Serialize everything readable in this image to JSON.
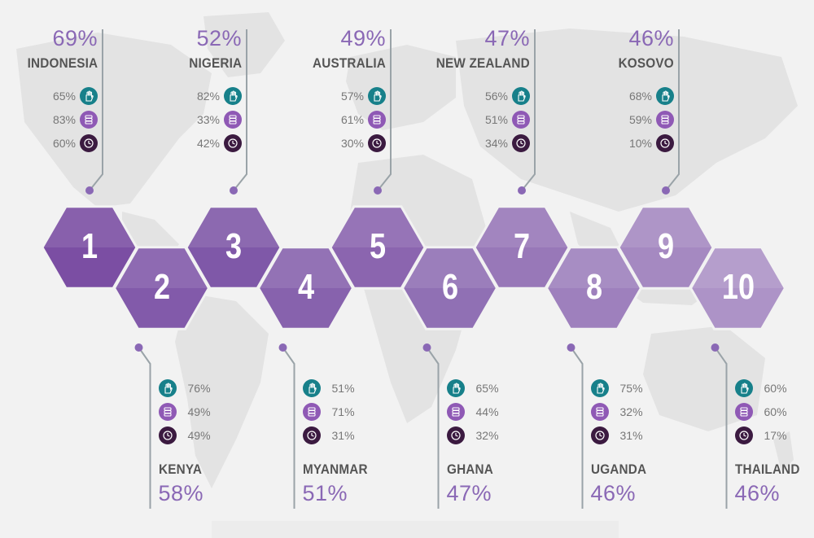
{
  "colors": {
    "hand": "#17808a",
    "coins": "#8f59b5",
    "clock": "#3b1a40",
    "accent": "#8a68b5",
    "line": "#9aa3a8",
    "map": "#e2e2e2"
  },
  "icons": {
    "hand": "hand-icon",
    "coins": "coins-icon",
    "clock": "clock-icon"
  },
  "items": [
    {
      "rank": "1",
      "country": "INDONESIA",
      "total": "69%",
      "stats": [
        "65%",
        "83%",
        "60%"
      ]
    },
    {
      "rank": "2",
      "country": "KENYA",
      "total": "58%",
      "stats": [
        "76%",
        "49%",
        "49%"
      ]
    },
    {
      "rank": "3",
      "country": "NIGERIA",
      "total": "52%",
      "stats": [
        "82%",
        "33%",
        "42%"
      ]
    },
    {
      "rank": "4",
      "country": "MYANMAR",
      "total": "51%",
      "stats": [
        "51%",
        "71%",
        "31%"
      ]
    },
    {
      "rank": "5",
      "country": "AUSTRALIA",
      "total": "49%",
      "stats": [
        "57%",
        "61%",
        "30%"
      ]
    },
    {
      "rank": "6",
      "country": "GHANA",
      "total": "47%",
      "stats": [
        "65%",
        "44%",
        "32%"
      ]
    },
    {
      "rank": "7",
      "country": "NEW ZEALAND",
      "total": "47%",
      "stats": [
        "56%",
        "51%",
        "34%"
      ]
    },
    {
      "rank": "8",
      "country": "UGANDA",
      "total": "46%",
      "stats": [
        "75%",
        "32%",
        "31%"
      ]
    },
    {
      "rank": "9",
      "country": "KOSOVO",
      "total": "46%",
      "stats": [
        "68%",
        "59%",
        "10%"
      ]
    },
    {
      "rank": "10",
      "country": "THAILAND",
      "total": "46%",
      "stats": [
        "60%",
        "60%",
        "17%"
      ]
    }
  ]
}
